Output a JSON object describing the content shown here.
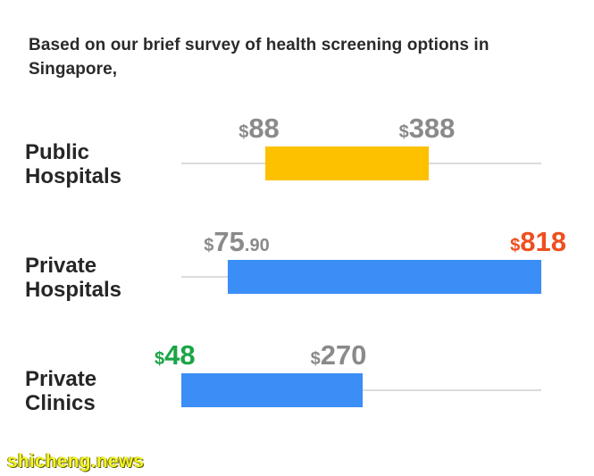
{
  "intro_text": "Based on our brief survey of health screening options in Singapore,",
  "watermark": "shicheng.news",
  "chart_data": {
    "type": "range-bar",
    "title": "",
    "xlabel": "",
    "ylabel": "",
    "xlim": [
      0,
      818
    ],
    "grid": false,
    "rows": [
      {
        "category_lines": [
          "Public",
          "Hospitals"
        ],
        "low": 88,
        "high": 388,
        "low_label": {
          "currency": "$",
          "main": "88",
          "decimal": "",
          "color": "#8a8a8a"
        },
        "high_label": {
          "currency": "$",
          "main": "388",
          "decimal": "",
          "color": "#8a8a8a"
        },
        "bar_color": "#FDC100"
      },
      {
        "category_lines": [
          "Private",
          "Hospitals"
        ],
        "low": 75.9,
        "high": 818,
        "low_label": {
          "currency": "$",
          "main": "75",
          "decimal": ".90",
          "color": "#8a8a8a"
        },
        "high_label": {
          "currency": "$",
          "main": "818",
          "decimal": "",
          "color": "#EE4F1F"
        },
        "bar_color": "#3B8EF5"
      },
      {
        "category_lines": [
          "Private",
          "Clinics"
        ],
        "low": 48,
        "high": 270,
        "low_label": {
          "currency": "$",
          "main": "48",
          "decimal": "",
          "color": "#1BA545"
        },
        "high_label": {
          "currency": "$",
          "main": "270",
          "decimal": "",
          "color": "#8a8a8a"
        },
        "bar_color": "#3B8EF5"
      }
    ],
    "axis_line_color": "#cfcfcf"
  }
}
